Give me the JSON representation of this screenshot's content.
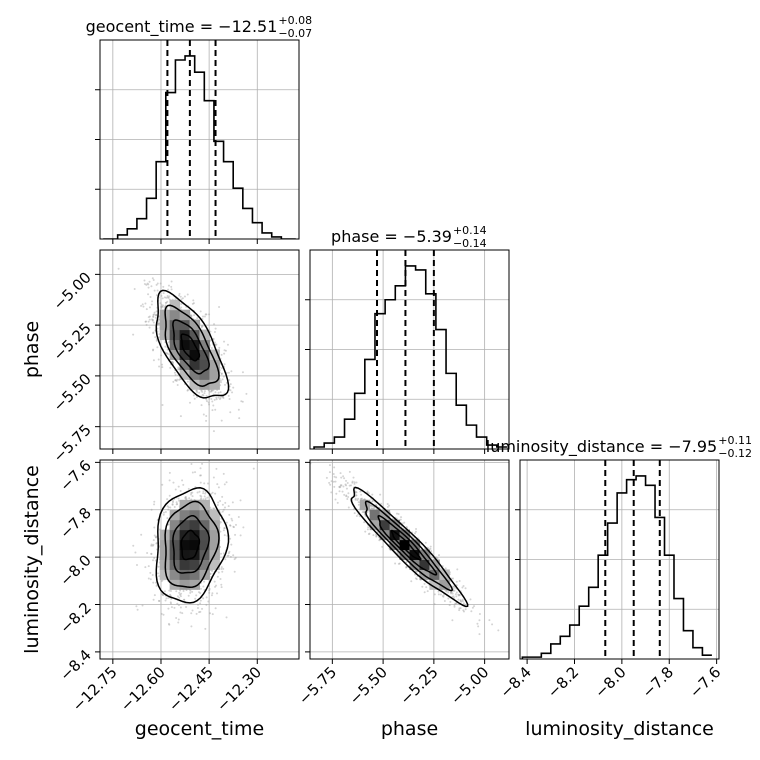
{
  "figure": {
    "type": "corner_plot"
  },
  "chart_data": {
    "type": "corner",
    "parameters": [
      {
        "name": "geocent_time",
        "median": "−12.51",
        "plus": "+0.08",
        "minus": "−0.07",
        "quantiles": [
          -12.58,
          -12.51,
          -12.43
        ],
        "range": [
          -12.79,
          -12.17
        ],
        "ticks": [
          -12.75,
          -12.6,
          -12.45,
          -12.3
        ],
        "tick_labels": [
          "−12.75",
          "−12.60",
          "−12.45",
          "−12.30"
        ],
        "hist_bins": [
          -12.78,
          -12.765,
          -12.75,
          -12.735,
          -12.72,
          -12.705,
          -12.69,
          -12.675,
          -12.66,
          -12.645,
          -12.63,
          -12.615,
          -12.6,
          -12.585,
          -12.57,
          -12.555,
          -12.54,
          -12.525,
          -12.51,
          -12.495,
          -12.48,
          -12.465,
          -12.45,
          -12.435,
          -12.42,
          -12.405,
          -12.39,
          -12.375,
          -12.36,
          -12.345,
          -12.33,
          -12.315,
          -12.3,
          -12.285,
          -12.27,
          -12.255,
          -12.24,
          -12.225,
          -12.21,
          -12.195,
          -12.18
        ],
        "hist_counts": [
          0,
          0,
          0,
          0.02,
          0.02,
          0.05,
          0.05,
          0.1,
          0.1,
          0.2,
          0.2,
          0.38,
          0.38,
          0.72,
          0.72,
          0.88,
          0.88,
          0.9,
          0.9,
          0.82,
          0.82,
          0.68,
          0.68,
          0.48,
          0.48,
          0.38,
          0.38,
          0.25,
          0.25,
          0.15,
          0.15,
          0.08,
          0.08,
          0.03,
          0.03,
          0.01,
          0.01,
          0,
          0,
          0
        ]
      },
      {
        "name": "phase",
        "median": "−5.39",
        "plus": "+0.14",
        "minus": "−0.14",
        "quantiles": [
          -5.53,
          -5.39,
          -5.25
        ],
        "range": [
          -5.86,
          -4.88
        ],
        "ticks": [
          -5.75,
          -5.5,
          -5.25,
          -5.0
        ],
        "tick_labels": [
          "−5.75",
          "−5.50",
          "−5.25",
          "−5.00"
        ],
        "hist_bins": [
          -5.84,
          -5.79,
          -5.74,
          -5.69,
          -5.64,
          -5.59,
          -5.54,
          -5.49,
          -5.44,
          -5.39,
          -5.34,
          -5.29,
          -5.24,
          -5.19,
          -5.14,
          -5.09,
          -5.04,
          -4.99,
          -4.94,
          -4.89
        ],
        "hist_counts": [
          0.01,
          0.03,
          0.06,
          0.15,
          0.28,
          0.45,
          0.68,
          0.75,
          0.82,
          0.92,
          0.9,
          0.78,
          0.6,
          0.38,
          0.22,
          0.12,
          0.06,
          0.02,
          0.01
        ]
      },
      {
        "name": "luminosity_distance",
        "median": "−7.95",
        "plus": "+0.11",
        "minus": "−0.12",
        "quantiles": [
          -8.07,
          -7.95,
          -7.84
        ],
        "range": [
          -8.43,
          -7.59
        ],
        "ticks": [
          -8.4,
          -8.2,
          -8.0,
          -7.8,
          -7.6
        ],
        "tick_labels": [
          "−8.4",
          "−8.2",
          "−8.0",
          "−7.8",
          "−7.6"
        ],
        "hist_bins": [
          -8.42,
          -8.38,
          -8.34,
          -8.3,
          -8.26,
          -8.22,
          -8.18,
          -8.14,
          -8.1,
          -8.06,
          -8.02,
          -7.98,
          -7.94,
          -7.9,
          -7.86,
          -7.82,
          -7.78,
          -7.74,
          -7.7,
          -7.66,
          -7.62
        ],
        "hist_counts": [
          0.01,
          0.01,
          0.03,
          0.08,
          0.12,
          0.18,
          0.28,
          0.38,
          0.55,
          0.72,
          0.88,
          0.95,
          0.97,
          0.92,
          0.75,
          0.55,
          0.32,
          0.15,
          0.06,
          0.02
        ]
      }
    ],
    "pairs": [
      {
        "x": "geocent_time",
        "y": "phase",
        "center": [
          -12.51,
          -5.36
        ],
        "sd": [
          0.055,
          0.13
        ],
        "corr": -0.65
      },
      {
        "x": "geocent_time",
        "y": "luminosity_distance",
        "center": [
          -12.51,
          -7.95
        ],
        "sd": [
          0.055,
          0.12
        ],
        "corr": 0.15
      },
      {
        "x": "phase",
        "y": "luminosity_distance",
        "center": [
          -5.39,
          -7.95
        ],
        "sd": [
          0.14,
          0.12
        ],
        "corr": -0.95
      }
    ],
    "y_ticks_hist": [
      0.25,
      0.5,
      0.75
    ],
    "style": {
      "line": "#000000",
      "grid": "#b0b0b0",
      "scatter": "#a0a0a0",
      "hist_fill": "none",
      "quantile_dash": "6,4"
    },
    "grid": true
  }
}
